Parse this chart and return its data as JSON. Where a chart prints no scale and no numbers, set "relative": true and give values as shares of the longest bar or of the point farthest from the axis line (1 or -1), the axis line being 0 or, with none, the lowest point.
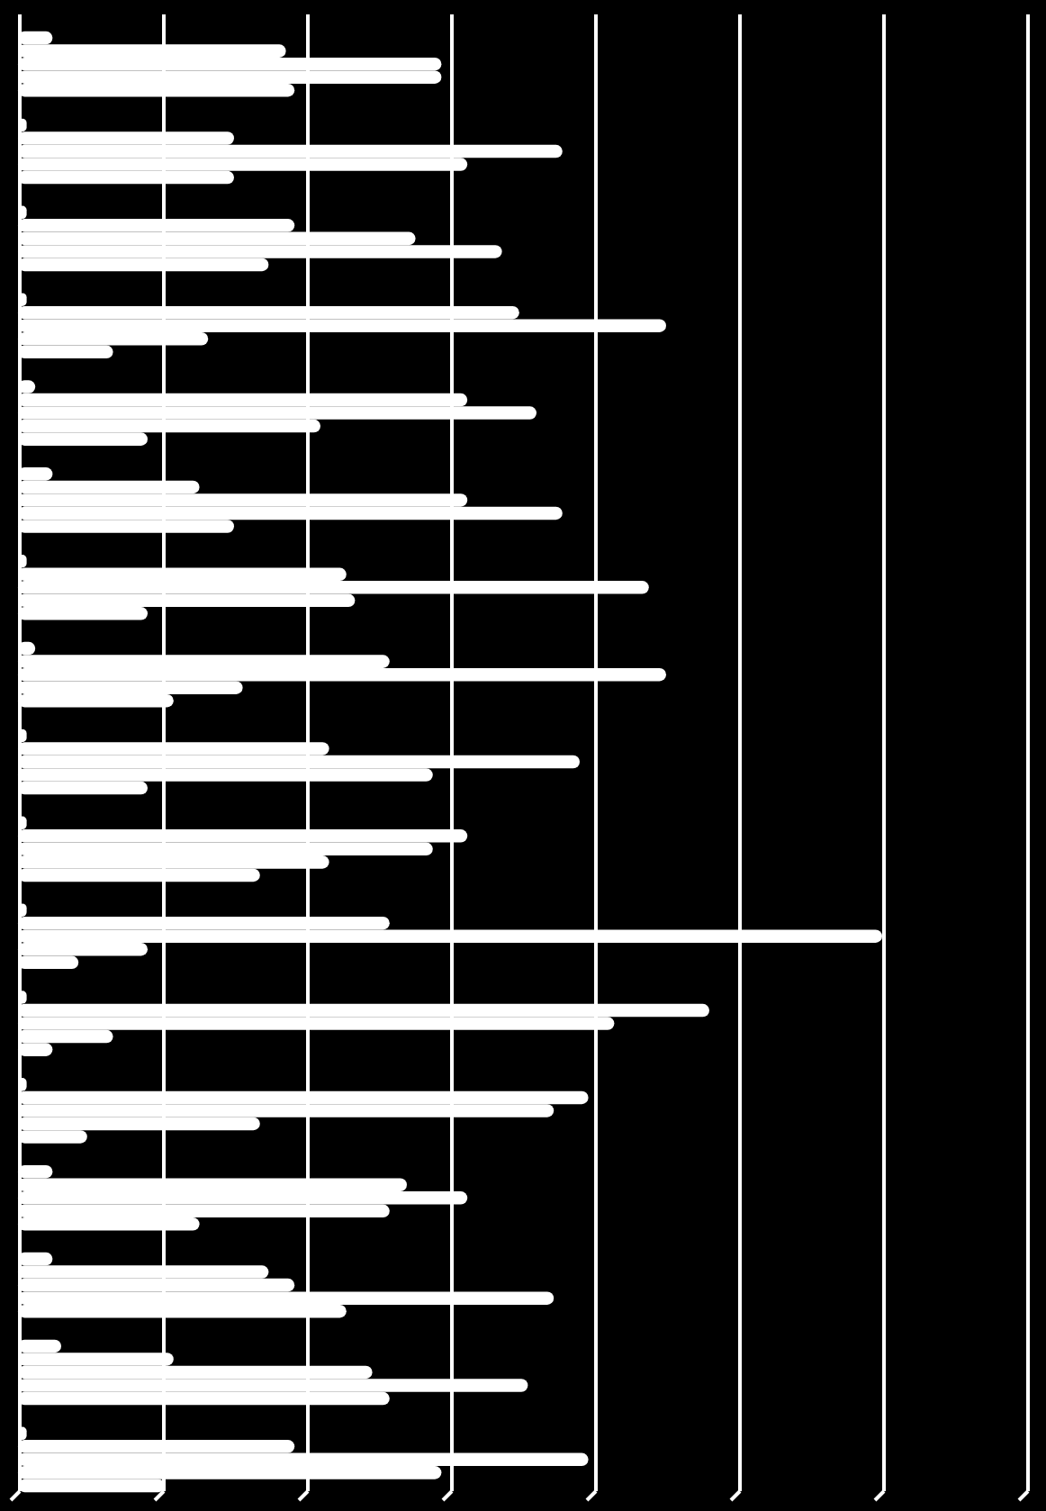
{
  "chart_data": {
    "type": "bar",
    "orientation": "horizontal",
    "relative": true,
    "grid": "x",
    "categories": [
      null,
      null,
      null,
      null,
      null,
      null,
      null,
      null,
      null,
      null,
      null,
      null,
      null,
      null,
      null,
      null,
      null
    ],
    "series": [
      {
        "color": "#ffffff",
        "values": [
          0.04,
          0.01,
          0.01,
          0.01,
          0.02,
          0.04,
          0.01,
          0.02,
          0.01,
          0.01,
          0.01,
          0.01,
          0.01,
          0.04,
          0.04,
          0.05,
          0.01
        ]
      },
      {
        "color": "#ffffff",
        "values": [
          0.31,
          0.25,
          0.32,
          0.58,
          0.52,
          0.21,
          0.38,
          0.43,
          0.36,
          0.52,
          0.43,
          0.8,
          0.66,
          0.45,
          0.29,
          0.18,
          0.32
        ]
      },
      {
        "color": "#ffffff",
        "values": [
          0.49,
          0.63,
          0.46,
          0.75,
          0.6,
          0.52,
          0.73,
          0.75,
          0.65,
          0.48,
          1,
          0.69,
          0.62,
          0.52,
          0.32,
          0.41,
          0.66
        ]
      },
      {
        "color": "#ffffff",
        "values": [
          0.49,
          0.52,
          0.56,
          0.22,
          0.35,
          0.63,
          0.39,
          0.26,
          0.48,
          0.36,
          0.15,
          0.11,
          0.28,
          0.43,
          0.62,
          0.59,
          0.49
        ]
      },
      {
        "color": "#ffffff",
        "values": [
          0.32,
          0.25,
          0.29,
          0.11,
          0.15,
          0.25,
          0.15,
          0.18,
          0.15,
          0.28,
          0.07,
          0.04,
          0.08,
          0.21,
          0.38,
          0.43,
          0.17
        ]
      }
    ]
  }
}
